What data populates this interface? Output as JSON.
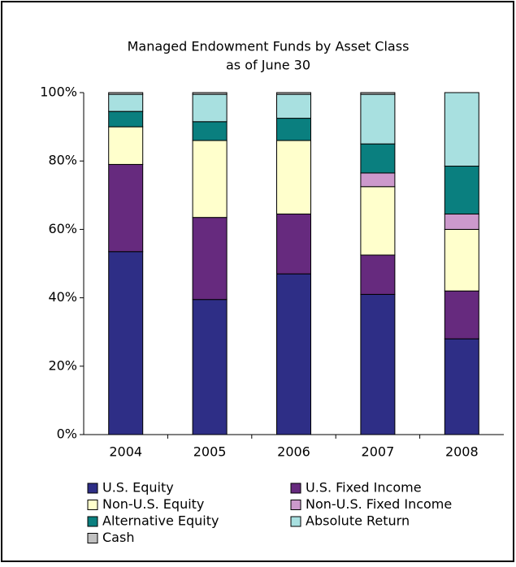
{
  "chart_data": {
    "type": "stacked_bar",
    "title": "Managed Endowment Funds by Asset Class",
    "subtitle": "as of June 30",
    "categories": [
      "2004",
      "2005",
      "2006",
      "2007",
      "2008"
    ],
    "series": [
      {
        "name": "U.S. Equity",
        "color": "#2e2e86",
        "values": [
          53.5,
          39.5,
          47,
          41,
          28
        ]
      },
      {
        "name": "U.S. Fixed Income",
        "color": "#662a7e",
        "values": [
          25.5,
          24,
          17.5,
          11.5,
          14
        ]
      },
      {
        "name": "Non-U.S. Equity",
        "color": "#ffffcc",
        "values": [
          11,
          22.5,
          21.5,
          20,
          18
        ]
      },
      {
        "name": "Non-U.S. Fixed Income",
        "color": "#cc99cc",
        "values": [
          0,
          0,
          0,
          4,
          4.5
        ]
      },
      {
        "name": "Alternative Equity",
        "color": "#0a7f7f",
        "values": [
          4.5,
          5.5,
          6.5,
          8.5,
          14
        ]
      },
      {
        "name": "Absolute Return",
        "color": "#a8e0e0",
        "values": [
          5,
          8,
          7,
          14.5,
          21.5
        ]
      },
      {
        "name": "Cash",
        "color": "#c0c0c0",
        "values": [
          0.5,
          0.5,
          0.5,
          0.5,
          0
        ]
      }
    ],
    "ylim": [
      0,
      100
    ],
    "yticks": [
      {
        "value": 0,
        "label": "0%"
      },
      {
        "value": 20,
        "label": "20%"
      },
      {
        "value": 40,
        "label": "40%"
      },
      {
        "value": 60,
        "label": "60%"
      },
      {
        "value": 80,
        "label": "80%"
      },
      {
        "value": 100,
        "label": "100%"
      }
    ],
    "grid": false,
    "legend": "bottom"
  }
}
